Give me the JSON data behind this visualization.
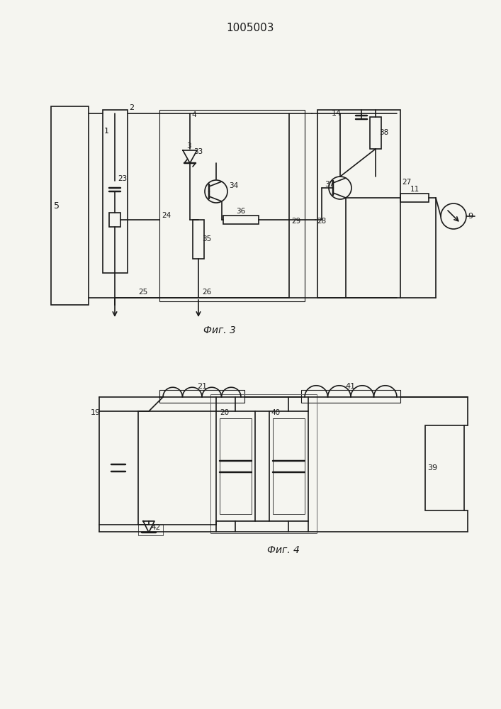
{
  "title": "1005003",
  "fig3_label": "Фиг. 3",
  "fig4_label": "Фиг. 4",
  "bg_color": "#f5f5f0",
  "line_color": "#1a1a1a",
  "line_width": 1.2
}
